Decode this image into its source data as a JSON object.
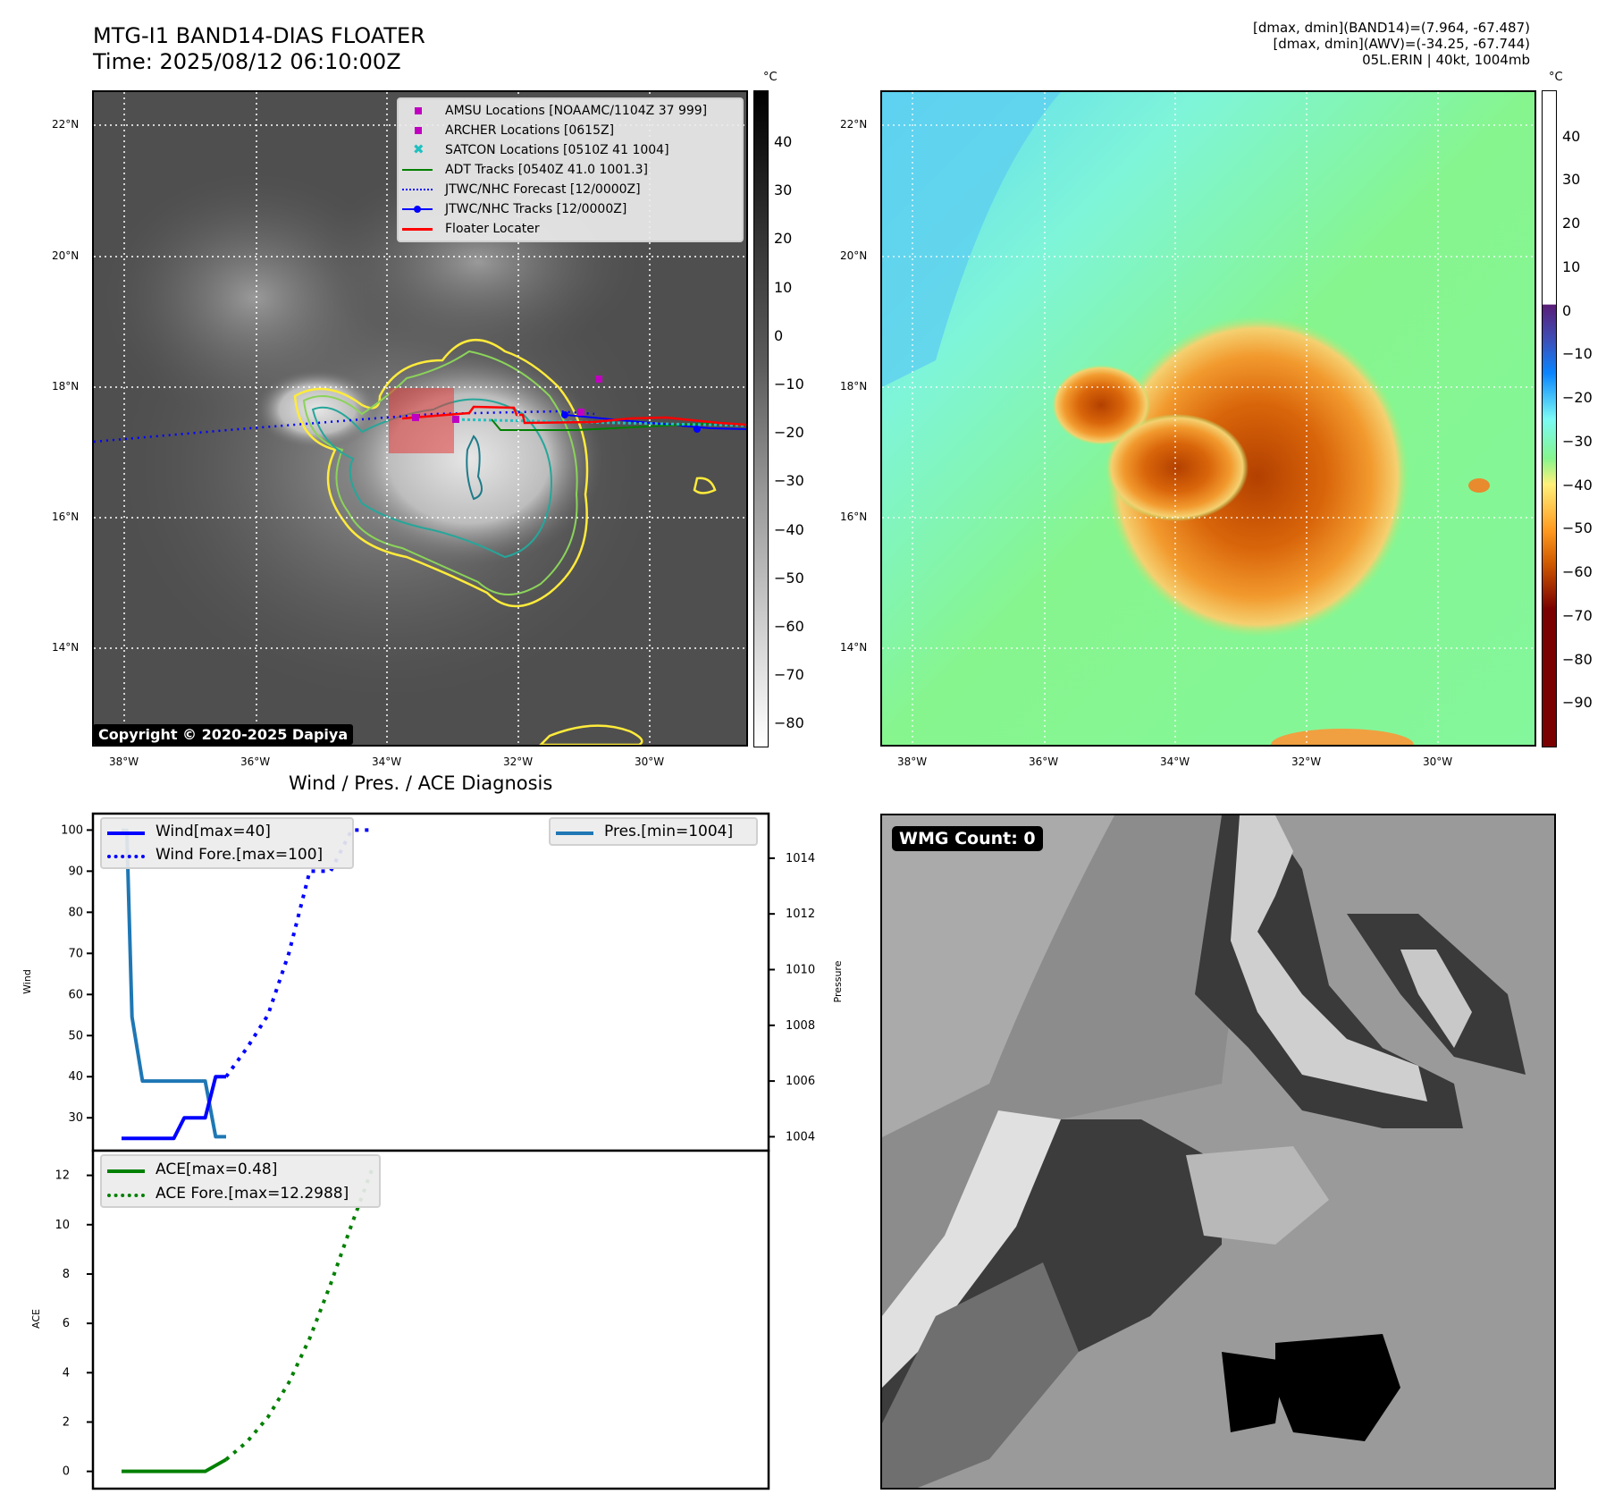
{
  "header": {
    "title_line1": "MTG-I1 BAND14-DIAS FLOATER",
    "title_line2": "Time: 2025/08/12 06:10:00Z",
    "info_line1": "[dmax, dmin](BAND14)=(7.964, -67.487)",
    "info_line2": "[dmax, dmin](AWV)=(-34.25, -67.744)",
    "info_line3": "05L.ERIN | 40kt, 1004mb"
  },
  "left_map": {
    "lat_ticks": [
      "22°N",
      "20°N",
      "18°N",
      "16°N",
      "14°N"
    ],
    "lon_ticks": [
      "38°W",
      "36°W",
      "34°W",
      "32°W",
      "30°W"
    ],
    "copyright": "Copyright © 2020-2025 Dapiya",
    "legend": [
      {
        "label": "AMSU Locations [NOAAMC/1104Z 37 999]",
        "symbol": "square",
        "color": "#c000c0"
      },
      {
        "label": "ARCHER Locations [0615Z]",
        "symbol": "square",
        "color": "#c000c0"
      },
      {
        "label": "SATCON Locations [0510Z 41 1004]",
        "symbol": "x",
        "color": "#20c0c0"
      },
      {
        "label": "ADT Tracks [0540Z 41.0 1001.3]",
        "symbol": "line",
        "color": "#008000"
      },
      {
        "label": "JTWC/NHC Forecast [12/0000Z]",
        "symbol": "dotted",
        "color": "#0000ff"
      },
      {
        "label": "JTWC/NHC Tracks [12/0000Z]",
        "symbol": "line-dot",
        "color": "#0000ff"
      },
      {
        "label": "Floater Locater",
        "symbol": "line",
        "color": "#ff0000"
      }
    ],
    "colorbar": {
      "unit": "°C",
      "ticks": [
        "40",
        "30",
        "20",
        "10",
        "0",
        "−10",
        "−20",
        "−30",
        "−40",
        "−50",
        "−60",
        "−70",
        "−80"
      ]
    }
  },
  "right_map": {
    "lat_ticks": [
      "22°N",
      "20°N",
      "18°N",
      "16°N",
      "14°N"
    ],
    "lon_ticks": [
      "38°W",
      "36°W",
      "34°W",
      "32°W",
      "30°W"
    ],
    "colorbar": {
      "unit": "°C",
      "ticks": [
        "40",
        "30",
        "20",
        "10",
        "0",
        "−10",
        "−20",
        "−30",
        "−40",
        "−50",
        "−60",
        "−70",
        "−80",
        "−90"
      ]
    }
  },
  "wmg_panel": {
    "label": "WMG Count: 0"
  },
  "chart_data": [
    {
      "type": "line",
      "title": "Wind / Pres. / ACE Diagnosis",
      "ylabel": "Wind",
      "y2label": "Pressure",
      "ylim": [
        22,
        104
      ],
      "y2lim": [
        1003.5,
        1015.6
      ],
      "yticks": [
        "100",
        "90",
        "80",
        "70",
        "60",
        "50",
        "40",
        "30"
      ],
      "y2ticks": [
        "1014",
        "1012",
        "1010",
        "1008",
        "1006",
        "1004"
      ],
      "x": [
        0,
        1,
        2,
        3,
        4,
        5,
        6,
        7,
        8,
        9,
        10,
        11,
        12,
        13,
        14,
        15,
        16,
        17,
        18,
        19,
        20,
        21,
        22,
        23,
        24
      ],
      "series": [
        {
          "name": "Wind[max=40]",
          "axis": "left",
          "style": "solid",
          "color": "#0000ff",
          "x": [
            0,
            1,
            2,
            3,
            4,
            5,
            6,
            7,
            8,
            9,
            10
          ],
          "values": [
            25,
            25,
            25,
            25,
            25,
            25,
            30,
            30,
            30,
            40,
            40
          ]
        },
        {
          "name": "Wind Fore.[max=100]",
          "axis": "left",
          "style": "dotted",
          "color": "#0000ff",
          "x": [
            10,
            12,
            14,
            16,
            18,
            20,
            22,
            24
          ],
          "values": [
            40,
            47,
            55,
            70,
            90,
            90,
            100,
            100
          ]
        },
        {
          "name": "Pres.[min=1004]",
          "axis": "right",
          "style": "solid",
          "color": "#1f77b4",
          "x": [
            0,
            0.5,
            1,
            2,
            3,
            4,
            5,
            6,
            7,
            8,
            9,
            10
          ],
          "values": [
            1015,
            1015,
            1008.3,
            1006,
            1006,
            1006,
            1006,
            1006,
            1006,
            1006,
            1004,
            1004
          ]
        }
      ],
      "legend": [
        "Wind[max=40]",
        "Wind Fore.[max=100]",
        "Pres.[min=1004]"
      ]
    },
    {
      "type": "line",
      "ylabel": "ACE",
      "ylim": [
        -0.7,
        13
      ],
      "yticks": [
        "12",
        "10",
        "8",
        "6",
        "4",
        "2",
        "0"
      ],
      "series": [
        {
          "name": "ACE[max=0.48]",
          "style": "solid",
          "color": "#008000",
          "x": [
            0,
            1,
            2,
            3,
            4,
            5,
            6,
            7,
            8,
            9,
            10
          ],
          "values": [
            0,
            0,
            0,
            0,
            0,
            0,
            0,
            0,
            0,
            0.24,
            0.48
          ]
        },
        {
          "name": "ACE Fore.[max=12.2988]",
          "style": "dotted",
          "color": "#008000",
          "x": [
            10,
            12,
            14,
            16,
            18,
            20,
            22,
            24
          ],
          "values": [
            0.48,
            1.2,
            2.2,
            3.6,
            5.4,
            7.6,
            10.0,
            12.2988
          ]
        }
      ],
      "legend": [
        "ACE[max=0.48]",
        "ACE Fore.[max=12.2988]"
      ]
    }
  ]
}
